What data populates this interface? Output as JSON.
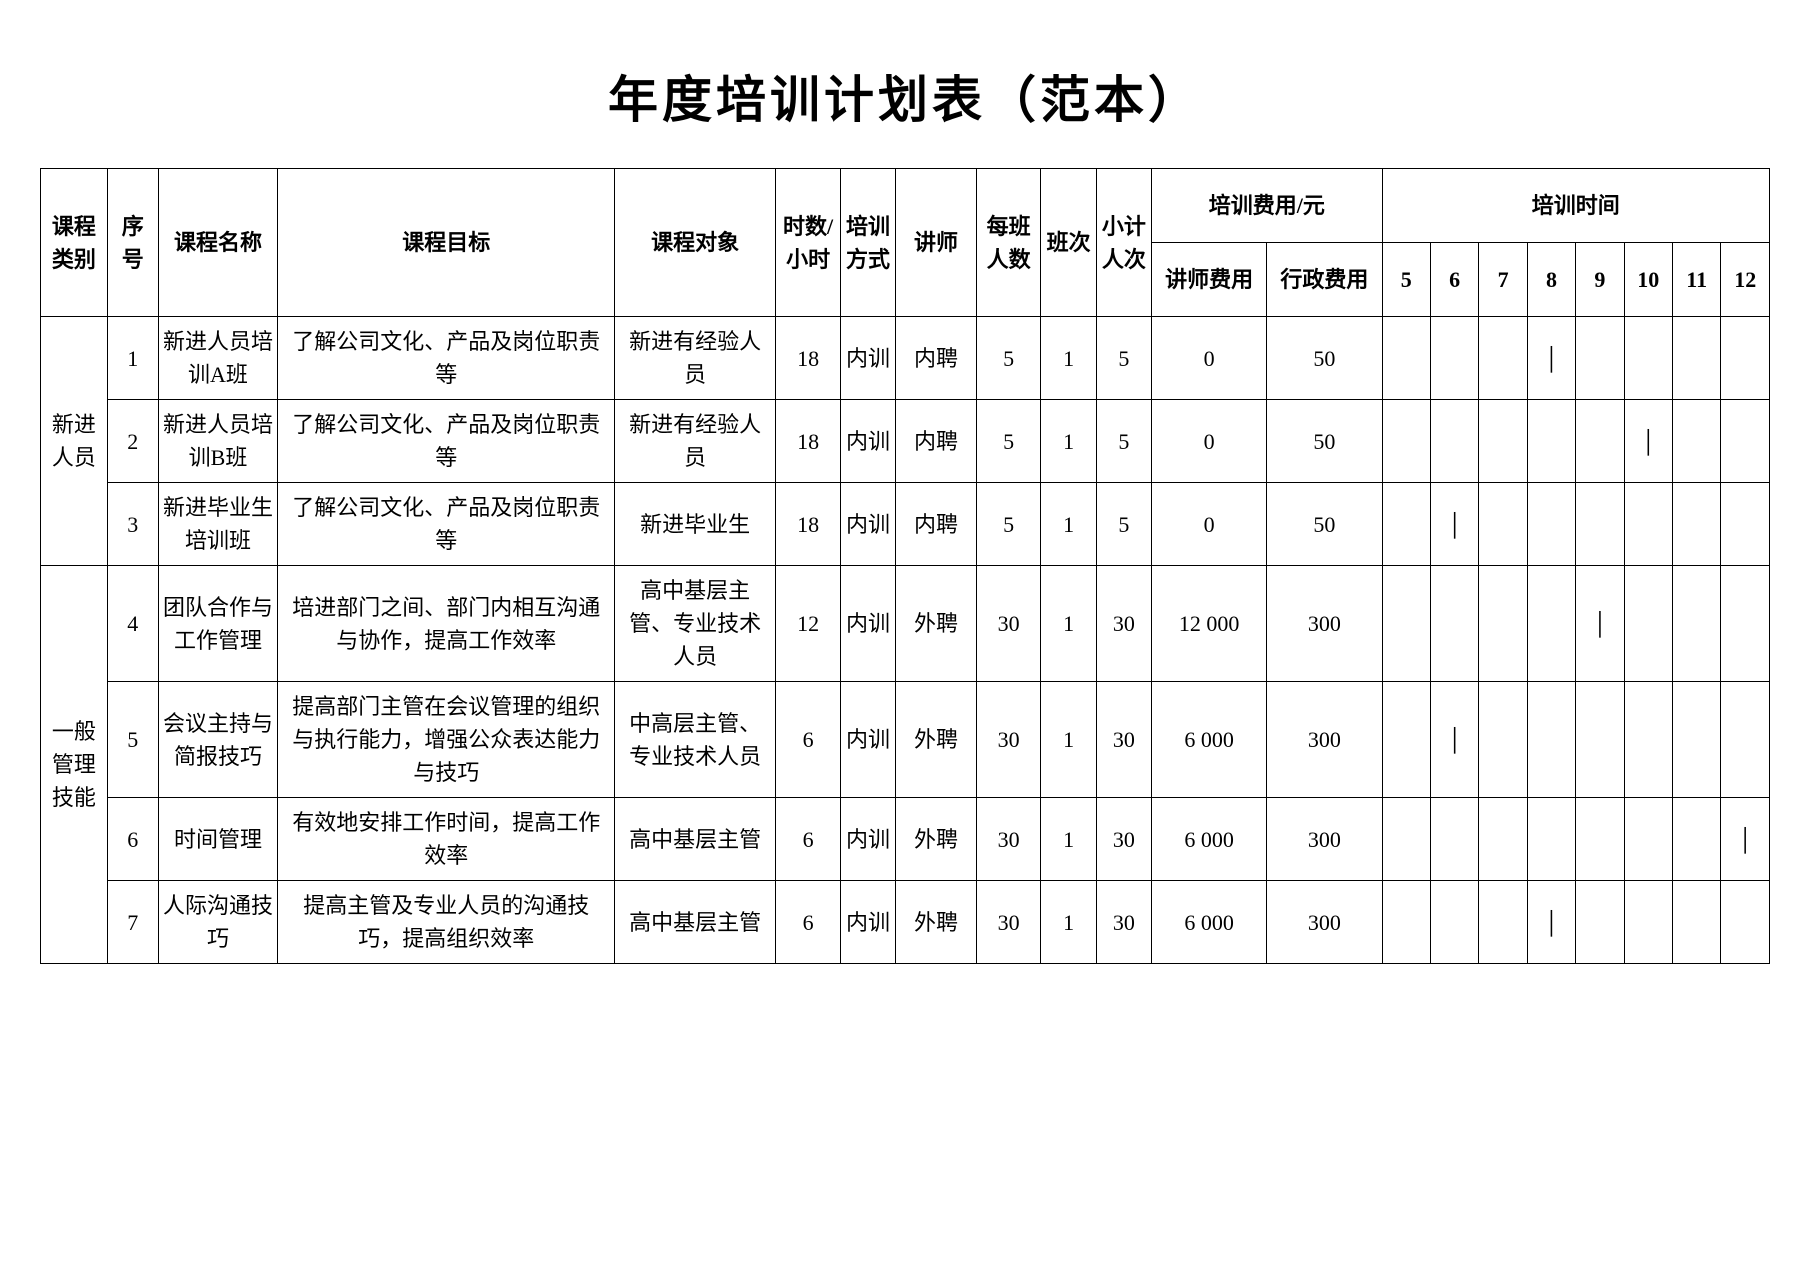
{
  "title": "年度培训计划表（范本）",
  "style": {
    "background_color": "#ffffff",
    "border_color": "#000000",
    "text_color": "#000000",
    "title_font_family": "Microsoft YaHei / SimHei",
    "body_font_family": "SimSun / Songti",
    "title_fontsize_pt": 36,
    "body_fontsize_pt": 16,
    "tick_mark": "│"
  },
  "headers": {
    "category": "课程类别",
    "index": "序号",
    "course_name": "课程名称",
    "course_goal": "课程目标",
    "course_target": "课程对象",
    "hours": "时数/小时",
    "mode": "培训方式",
    "lecturer": "讲师",
    "per_class": "每班人数",
    "sessions": "班次",
    "subtotal": "小计人次",
    "fee_group": "培训费用/元",
    "fee_trainer": "讲师费用",
    "fee_admin": "行政费用",
    "time_group": "培训时间",
    "months": [
      "5",
      "6",
      "7",
      "8",
      "9",
      "10",
      "11",
      "12"
    ]
  },
  "categories": [
    {
      "id": "new_staff",
      "label": "新进人员",
      "row_indices": [
        1,
        2,
        3
      ]
    },
    {
      "id": "gen_mgmt",
      "label": "一般管理技能",
      "row_indices": [
        4,
        5,
        6,
        7
      ]
    }
  ],
  "rows": [
    {
      "idx": "1",
      "category": "new_staff",
      "name": "新进人员培训A班",
      "goal": "了解公司文化、产品及岗位职责等",
      "target": "新进有经验人员",
      "hours": "18",
      "mode": "内训",
      "lecturer": "内聘",
      "per_class": "5",
      "sessions": "1",
      "subtotal": "5",
      "fee_trainer": "0",
      "fee_admin": "50",
      "months": {
        "5": "",
        "6": "",
        "7": "",
        "8": "│",
        "9": "",
        "10": "",
        "11": "",
        "12": ""
      }
    },
    {
      "idx": "2",
      "category": "new_staff",
      "name": "新进人员培训B班",
      "goal": "了解公司文化、产品及岗位职责等",
      "target": "新进有经验人员",
      "hours": "18",
      "mode": "内训",
      "lecturer": "内聘",
      "per_class": "5",
      "sessions": "1",
      "subtotal": "5",
      "fee_trainer": "0",
      "fee_admin": "50",
      "months": {
        "5": "",
        "6": "",
        "7": "",
        "8": "",
        "9": "",
        "10": "│",
        "11": "",
        "12": ""
      }
    },
    {
      "idx": "3",
      "category": "new_staff",
      "name": "新进毕业生培训班",
      "goal": "了解公司文化、产品及岗位职责等",
      "target": "新进毕业生",
      "hours": "18",
      "mode": "内训",
      "lecturer": "内聘",
      "per_class": "5",
      "sessions": "1",
      "subtotal": "5",
      "fee_trainer": "0",
      "fee_admin": "50",
      "months": {
        "5": "",
        "6": "│",
        "7": "",
        "8": "",
        "9": "",
        "10": "",
        "11": "",
        "12": ""
      }
    },
    {
      "idx": "4",
      "category": "gen_mgmt",
      "name": "团队合作与工作管理",
      "goal": "培进部门之间、部门内相互沟通与协作，提高工作效率",
      "target": "高中基层主管、专业技术人员",
      "hours": "12",
      "mode": "内训",
      "lecturer": "外聘",
      "per_class": "30",
      "sessions": "1",
      "subtotal": "30",
      "fee_trainer": "12 000",
      "fee_admin": "300",
      "months": {
        "5": "",
        "6": "",
        "7": "",
        "8": "",
        "9": "│",
        "10": "",
        "11": "",
        "12": ""
      }
    },
    {
      "idx": "5",
      "category": "gen_mgmt",
      "name": "会议主持与简报技巧",
      "goal": "提高部门主管在会议管理的组织与执行能力，增强公众表达能力与技巧",
      "target": "中高层主管、专业技术人员",
      "hours": "6",
      "mode": "内训",
      "lecturer": "外聘",
      "per_class": "30",
      "sessions": "1",
      "subtotal": "30",
      "fee_trainer": "6 000",
      "fee_admin": "300",
      "months": {
        "5": "",
        "6": "│",
        "7": "",
        "8": "",
        "9": "",
        "10": "",
        "11": "",
        "12": ""
      }
    },
    {
      "idx": "6",
      "category": "gen_mgmt",
      "name": "时间管理",
      "goal": "有效地安排工作时间，提高工作效率",
      "target": "高中基层主管",
      "hours": "6",
      "mode": "内训",
      "lecturer": "外聘",
      "per_class": "30",
      "sessions": "1",
      "subtotal": "30",
      "fee_trainer": "6 000",
      "fee_admin": "300",
      "months": {
        "5": "",
        "6": "",
        "7": "",
        "8": "",
        "9": "",
        "10": "",
        "11": "",
        "12": "│"
      }
    },
    {
      "idx": "7",
      "category": "gen_mgmt",
      "name": "人际沟通技巧",
      "goal": "提高主管及专业人员的沟通技巧，提高组织效率",
      "target": "高中基层主管",
      "hours": "6",
      "mode": "内训",
      "lecturer": "外聘",
      "per_class": "30",
      "sessions": "1",
      "subtotal": "30",
      "fee_trainer": "6 000",
      "fee_admin": "300",
      "months": {
        "5": "",
        "6": "",
        "7": "",
        "8": "│",
        "9": "",
        "10": "",
        "11": "",
        "12": ""
      }
    }
  ]
}
